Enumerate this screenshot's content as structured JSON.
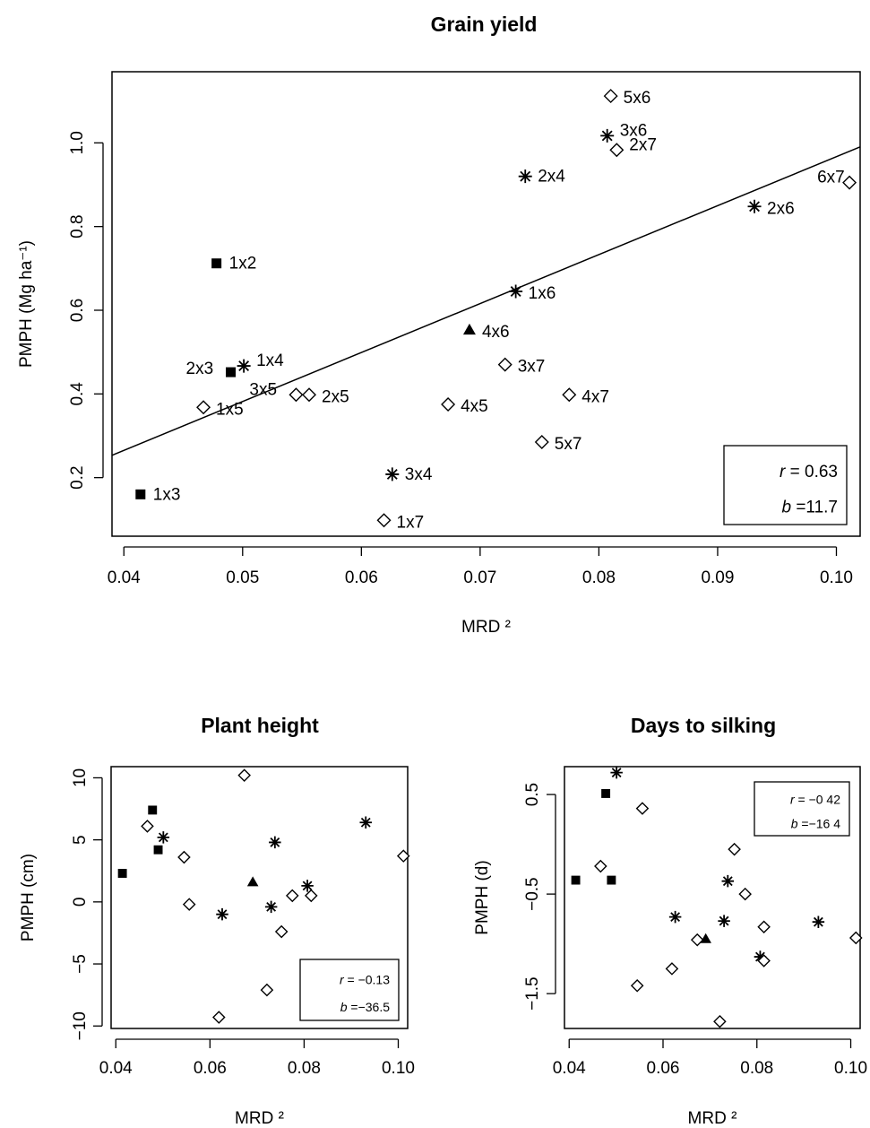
{
  "chart_data": [
    {
      "type": "scatter",
      "title": "Grain yield",
      "xlabel": "MRD ²",
      "ylabel": "PMPH (Mg ha⁻¹)",
      "xlim": [
        0.039,
        0.102
      ],
      "ylim": [
        0.06,
        1.17
      ],
      "xticks": [
        "0.04",
        "0.05",
        "0.06",
        "0.07",
        "0.08",
        "0.09",
        "0.10"
      ],
      "yticks": [
        "0.2",
        "0.4",
        "0.6",
        "0.8",
        "1.0"
      ],
      "regression": {
        "intercept": -0.203,
        "slope": 11.7,
        "x_range": [
          0.039,
          0.102
        ]
      },
      "stats": {
        "r_label": "r",
        "r_value": "= 0.63",
        "b_label": "b",
        "b_value": "=11.7"
      },
      "points": [
        {
          "x": 0.0414,
          "y": 0.16,
          "marker": "square",
          "label": "1x3"
        },
        {
          "x": 0.0478,
          "y": 0.712,
          "marker": "square",
          "label": "1x2"
        },
        {
          "x": 0.049,
          "y": 0.452,
          "marker": "square",
          "label": "2x3"
        },
        {
          "x": 0.0501,
          "y": 0.467,
          "marker": "star",
          "label": "1x4"
        },
        {
          "x": 0.0467,
          "y": 0.368,
          "marker": "diamond",
          "label": "1x5"
        },
        {
          "x": 0.0545,
          "y": 0.398,
          "marker": "diamond",
          "label": "3x5"
        },
        {
          "x": 0.0556,
          "y": 0.398,
          "marker": "diamond",
          "label": "2x5"
        },
        {
          "x": 0.0619,
          "y": 0.098,
          "marker": "diamond",
          "label": "1x7"
        },
        {
          "x": 0.0626,
          "y": 0.208,
          "marker": "star",
          "label": "3x4"
        },
        {
          "x": 0.0673,
          "y": 0.375,
          "marker": "diamond",
          "label": "4x5"
        },
        {
          "x": 0.0691,
          "y": 0.553,
          "marker": "triangle",
          "label": "4x6"
        },
        {
          "x": 0.0721,
          "y": 0.47,
          "marker": "diamond",
          "label": "3x7"
        },
        {
          "x": 0.073,
          "y": 0.645,
          "marker": "star",
          "label": "1x6"
        },
        {
          "x": 0.0738,
          "y": 0.92,
          "marker": "star",
          "label": "2x4"
        },
        {
          "x": 0.0752,
          "y": 0.285,
          "marker": "diamond",
          "label": "5x7"
        },
        {
          "x": 0.0775,
          "y": 0.398,
          "marker": "diamond",
          "label": "4x7"
        },
        {
          "x": 0.0807,
          "y": 1.017,
          "marker": "star",
          "label": "3x6"
        },
        {
          "x": 0.081,
          "y": 1.112,
          "marker": "diamond",
          "label": "5x6"
        },
        {
          "x": 0.0815,
          "y": 0.983,
          "marker": "diamond",
          "label": "2x7"
        },
        {
          "x": 0.0931,
          "y": 0.848,
          "marker": "star",
          "label": "2x6"
        },
        {
          "x": 0.1011,
          "y": 0.905,
          "marker": "diamond",
          "label": "6x7"
        }
      ]
    },
    {
      "type": "scatter",
      "title": "Plant height",
      "xlabel": "MRD ²",
      "ylabel": "PMPH (cm)",
      "xlim": [
        0.039,
        0.102
      ],
      "ylim": [
        -10.2,
        10.9
      ],
      "xticks": [
        "0.04",
        "0.06",
        "0.08",
        "0.10"
      ],
      "yticks": [
        "−10",
        "−5",
        "0",
        "5",
        "10"
      ],
      "stats": {
        "r_label": "r",
        "r_value": "= −0.13",
        "b_label": "b",
        "b_value": "=−36.5"
      },
      "points": [
        {
          "x": 0.0414,
          "y": 2.3,
          "marker": "square"
        },
        {
          "x": 0.0478,
          "y": 7.4,
          "marker": "square"
        },
        {
          "x": 0.049,
          "y": 4.2,
          "marker": "square"
        },
        {
          "x": 0.0467,
          "y": 6.1,
          "marker": "diamond"
        },
        {
          "x": 0.0501,
          "y": 5.2,
          "marker": "star"
        },
        {
          "x": 0.0545,
          "y": 3.6,
          "marker": "diamond"
        },
        {
          "x": 0.0556,
          "y": -0.2,
          "marker": "diamond"
        },
        {
          "x": 0.0619,
          "y": -9.3,
          "marker": "diamond"
        },
        {
          "x": 0.0626,
          "y": -1.0,
          "marker": "star"
        },
        {
          "x": 0.0673,
          "y": 10.2,
          "marker": "diamond"
        },
        {
          "x": 0.0691,
          "y": 1.6,
          "marker": "triangle"
        },
        {
          "x": 0.0721,
          "y": -7.1,
          "marker": "diamond"
        },
        {
          "x": 0.073,
          "y": -0.4,
          "marker": "star"
        },
        {
          "x": 0.0738,
          "y": 4.8,
          "marker": "star"
        },
        {
          "x": 0.0752,
          "y": -2.4,
          "marker": "diamond"
        },
        {
          "x": 0.0775,
          "y": 0.5,
          "marker": "diamond"
        },
        {
          "x": 0.0807,
          "y": 1.3,
          "marker": "star"
        },
        {
          "x": 0.0815,
          "y": 0.5,
          "marker": "diamond"
        },
        {
          "x": 0.0931,
          "y": 6.4,
          "marker": "star"
        },
        {
          "x": 0.1011,
          "y": 3.7,
          "marker": "diamond"
        }
      ]
    },
    {
      "type": "scatter",
      "title": "Days to silking",
      "xlabel": "MRD ²",
      "ylabel": "PMPH (d)",
      "xlim": [
        0.039,
        0.102
      ],
      "ylim": [
        -1.85,
        0.78
      ],
      "xticks": [
        "0.04",
        "0.06",
        "0.08",
        "0.10"
      ],
      "yticks": [
        "−1.5",
        "−0.5",
        "0.5"
      ],
      "stats": {
        "r_label": "r",
        "r_value": "= −0 42",
        "b_label": "b",
        "b_value": "=−16 4"
      },
      "points": [
        {
          "x": 0.0414,
          "y": -0.36,
          "marker": "square"
        },
        {
          "x": 0.0478,
          "y": 0.51,
          "marker": "square"
        },
        {
          "x": 0.049,
          "y": -0.36,
          "marker": "square"
        },
        {
          "x": 0.0467,
          "y": -0.22,
          "marker": "diamond"
        },
        {
          "x": 0.0501,
          "y": 0.72,
          "marker": "star"
        },
        {
          "x": 0.0545,
          "y": -1.42,
          "marker": "diamond"
        },
        {
          "x": 0.0556,
          "y": 0.36,
          "marker": "diamond"
        },
        {
          "x": 0.0619,
          "y": -1.25,
          "marker": "diamond"
        },
        {
          "x": 0.0626,
          "y": -0.73,
          "marker": "star"
        },
        {
          "x": 0.0673,
          "y": -0.96,
          "marker": "diamond"
        },
        {
          "x": 0.0691,
          "y": -0.95,
          "marker": "triangle"
        },
        {
          "x": 0.0721,
          "y": -1.78,
          "marker": "diamond"
        },
        {
          "x": 0.073,
          "y": -0.77,
          "marker": "star"
        },
        {
          "x": 0.0738,
          "y": -0.37,
          "marker": "star"
        },
        {
          "x": 0.0752,
          "y": -0.05,
          "marker": "diamond"
        },
        {
          "x": 0.0775,
          "y": -0.5,
          "marker": "diamond"
        },
        {
          "x": 0.0807,
          "y": -1.13,
          "marker": "star"
        },
        {
          "x": 0.0815,
          "y": -0.83,
          "marker": "diamond"
        },
        {
          "x": 0.0815,
          "y": -1.17,
          "marker": "diamond"
        },
        {
          "x": 0.0931,
          "y": -0.78,
          "marker": "star"
        },
        {
          "x": 0.1011,
          "y": -0.94,
          "marker": "diamond"
        }
      ]
    }
  ]
}
